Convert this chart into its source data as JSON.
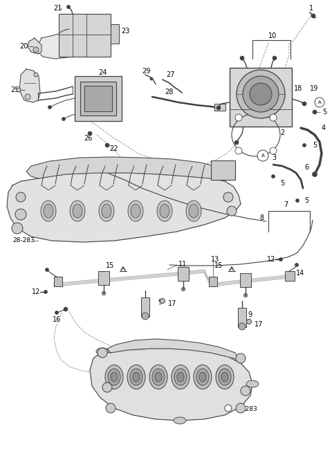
{
  "bg_color": "#ffffff",
  "line_color": "#404040",
  "label_color": "#000000",
  "lfs": 7.0,
  "fig_w": 4.8,
  "fig_h": 6.52,
  "dpi": 100
}
